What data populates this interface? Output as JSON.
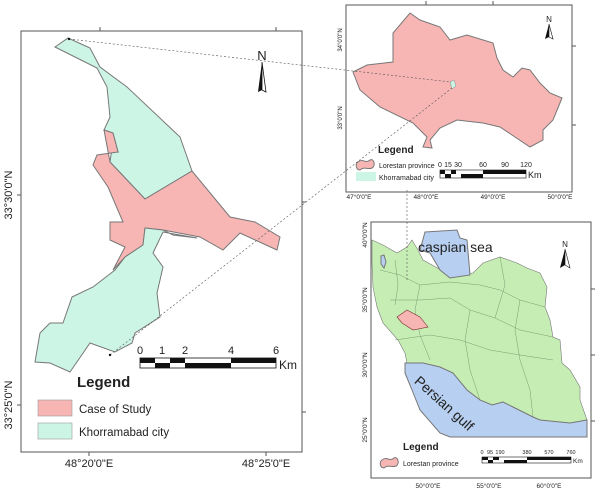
{
  "colors": {
    "study_area": "#f7b6b4",
    "city": "#ccf5e6",
    "province": "#f7b6b4",
    "iran": "#c6eeb4",
    "water": "#b7cff0",
    "border": "#777777"
  },
  "main_map": {
    "north_label": "N",
    "lat_ticks": [
      "33°30'0\"N",
      "33°25'0\"N"
    ],
    "lon_ticks": [
      "48°20'0\"E",
      "48°25'0\"E"
    ],
    "scale": {
      "ticks": [
        "0",
        "1",
        "2",
        "4",
        "6"
      ],
      "unit": "Km"
    },
    "legend": {
      "title": "Legend",
      "items": [
        {
          "label": "Case of Study",
          "icon": "rect-swatch"
        },
        {
          "label": "Khorramabad city",
          "icon": "rect-swatch"
        }
      ]
    }
  },
  "province_inset": {
    "north_label": "N",
    "lat_ticks": [
      "34°0'0\"N",
      "33°0'0\"N"
    ],
    "lon_ticks": [
      "47°0'0\"E",
      "48°0'0\"E",
      "49°0'0\"E",
      "50°0'0\"E"
    ],
    "scale": {
      "ticks": [
        "0",
        "15",
        "30",
        "60",
        "90",
        "120"
      ],
      "unit": "Km"
    },
    "legend": {
      "title": "Legend",
      "items": [
        {
          "label": "Lorestan province",
          "icon": "blob-swatch"
        },
        {
          "label": "Khorramabad city",
          "icon": "rect-swatch"
        }
      ]
    }
  },
  "country_inset": {
    "north_label": "N",
    "water_labels": [
      "caspian sea",
      "Persian gulf"
    ],
    "lat_ticks": [
      "40°0'0\"N",
      "35°0'0\"N",
      "30°0'0\"N",
      "25°0'0\"N"
    ],
    "lon_ticks": [
      "50°0'0\"E",
      "55°0'0\"E",
      "60°0'0\"E"
    ],
    "scale": {
      "ticks": [
        "0",
        "95",
        "190",
        "380",
        "570",
        "760"
      ],
      "unit": "Km"
    },
    "legend": {
      "title": "Legend",
      "items": [
        {
          "label": "Lorestan province",
          "icon": "blob-swatch"
        }
      ]
    }
  }
}
